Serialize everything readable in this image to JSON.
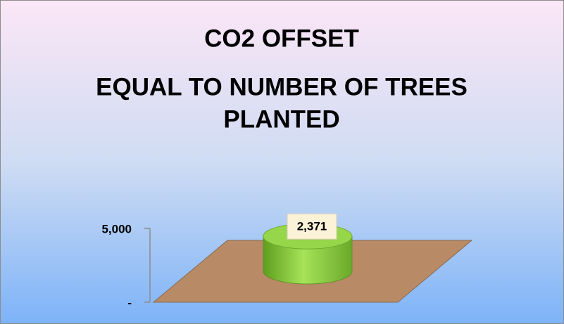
{
  "chart_data": {
    "type": "bar3d",
    "title": [
      "CO2 OFFSET",
      "EQUAL TO NUMBER OF TREES",
      "PLANTED"
    ],
    "categories": [
      null
    ],
    "values": [
      2371
    ],
    "value_labels": [
      "2,371"
    ],
    "color": "#8ccd3c",
    "ylim": [
      0,
      5000
    ],
    "yticks": [
      {
        "value": 0,
        "label": "-"
      },
      {
        "value": 5000,
        "label": "5,000"
      }
    ]
  }
}
